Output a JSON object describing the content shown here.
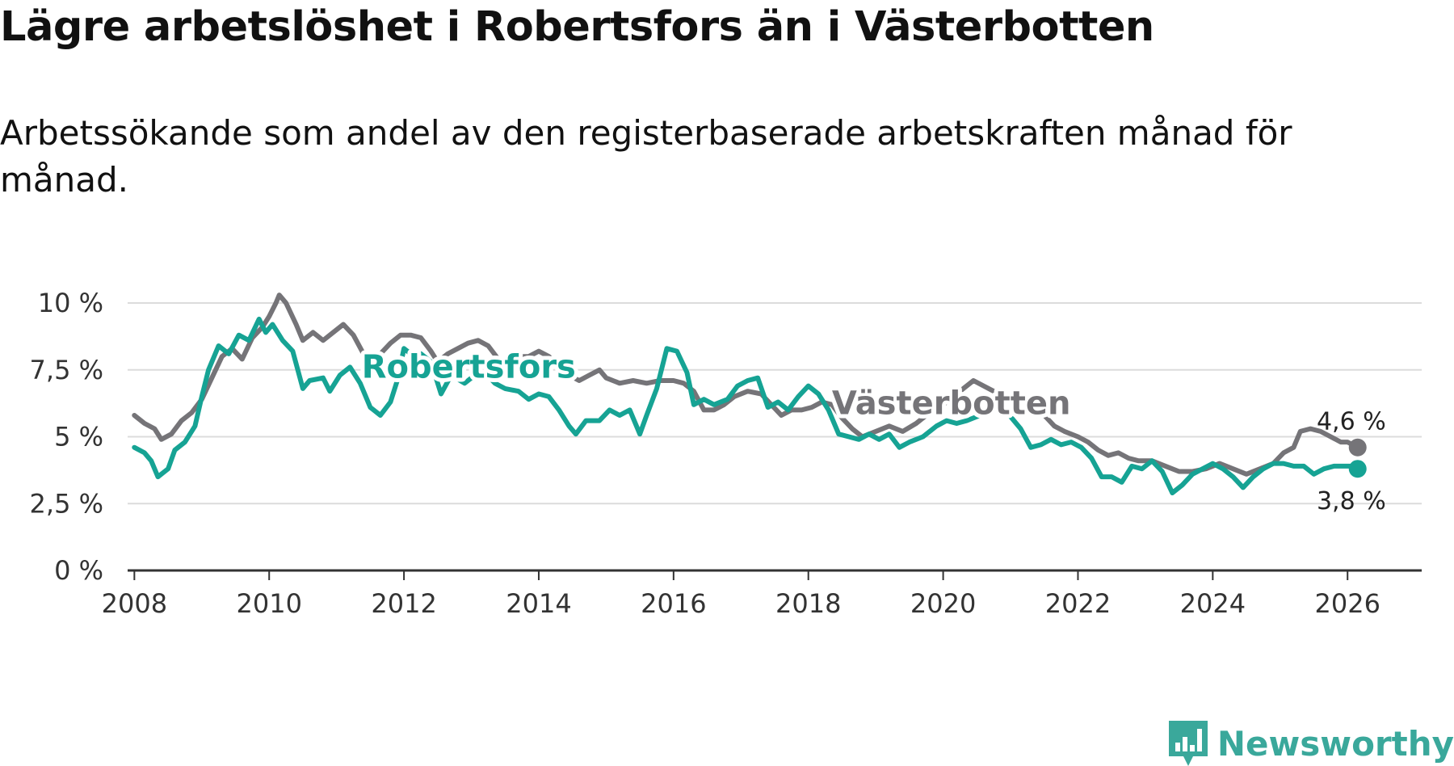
{
  "title": "Lägre arbetslöshet i Robertsfors än i Västerbotten",
  "subtitle": "Arbetssökande som andel av den registerbaserade arbetskraften månad för månad.",
  "brand": {
    "name": "Newsworthy",
    "color": "#3aa89b"
  },
  "colors": {
    "robertsfors": "#16a394",
    "vasterbotten": "#757478",
    "grid": "#dcdcdc",
    "axis": "#333333"
  },
  "chart_data": {
    "type": "line",
    "title": "Lägre arbetslöshet i Robertsfors än i Västerbotten",
    "subtitle": "Arbetssökande som andel av den registerbaserade arbetskraften månad för månad.",
    "xlabel": "",
    "ylabel": "",
    "xlim": [
      2007.9,
      2027.1
    ],
    "ylim": [
      0,
      10
    ],
    "x_ticks": [
      {
        "value": 2008,
        "label": "2008"
      },
      {
        "value": 2010,
        "label": "2010"
      },
      {
        "value": 2012,
        "label": "2012"
      },
      {
        "value": 2014,
        "label": "2014"
      },
      {
        "value": 2016,
        "label": "2016"
      },
      {
        "value": 2018,
        "label": "2018"
      },
      {
        "value": 2020,
        "label": "2020"
      },
      {
        "value": 2022,
        "label": "2022"
      },
      {
        "value": 2024,
        "label": "2024"
      },
      {
        "value": 2026,
        "label": "2026"
      }
    ],
    "y_ticks": [
      {
        "value": 0,
        "label": "0 %"
      },
      {
        "value": 2.5,
        "label": "2,5 %"
      },
      {
        "value": 5,
        "label": "5 %"
      },
      {
        "value": 7.5,
        "label": "7,5 %"
      },
      {
        "value": 10,
        "label": "10 %"
      }
    ],
    "grid": true,
    "series": [
      {
        "name": "Västerbotten",
        "label": "Västerbotten",
        "end_label": "4,6 %",
        "points": [
          [
            2008.0,
            5.8
          ],
          [
            2008.15,
            5.5
          ],
          [
            2008.3,
            5.3
          ],
          [
            2008.4,
            4.9
          ],
          [
            2008.55,
            5.1
          ],
          [
            2008.7,
            5.6
          ],
          [
            2008.85,
            5.9
          ],
          [
            2009.0,
            6.4
          ],
          [
            2009.15,
            7.2
          ],
          [
            2009.3,
            8.0
          ],
          [
            2009.45,
            8.3
          ],
          [
            2009.6,
            7.9
          ],
          [
            2009.75,
            8.7
          ],
          [
            2009.9,
            9.1
          ],
          [
            2010.0,
            9.5
          ],
          [
            2010.1,
            10.0
          ],
          [
            2010.15,
            10.3
          ],
          [
            2010.25,
            10.0
          ],
          [
            2010.4,
            9.2
          ],
          [
            2010.5,
            8.6
          ],
          [
            2010.65,
            8.9
          ],
          [
            2010.8,
            8.6
          ],
          [
            2010.95,
            8.9
          ],
          [
            2011.1,
            9.2
          ],
          [
            2011.25,
            8.8
          ],
          [
            2011.4,
            8.1
          ],
          [
            2011.5,
            7.8
          ],
          [
            2011.65,
            8.1
          ],
          [
            2011.8,
            8.5
          ],
          [
            2011.95,
            8.8
          ],
          [
            2012.1,
            8.8
          ],
          [
            2012.25,
            8.7
          ],
          [
            2012.4,
            8.2
          ],
          [
            2012.5,
            7.8
          ],
          [
            2012.65,
            8.1
          ],
          [
            2012.8,
            8.3
          ],
          [
            2012.95,
            8.5
          ],
          [
            2013.1,
            8.6
          ],
          [
            2013.25,
            8.4
          ],
          [
            2013.4,
            7.9
          ],
          [
            2013.55,
            7.5
          ],
          [
            2013.7,
            8.0
          ],
          [
            2013.85,
            8.0
          ],
          [
            2014.0,
            8.2
          ],
          [
            2014.15,
            8.0
          ],
          [
            2014.3,
            7.7
          ],
          [
            2014.45,
            7.3
          ],
          [
            2014.6,
            7.1
          ],
          [
            2014.75,
            7.3
          ],
          [
            2014.9,
            7.5
          ],
          [
            2015.0,
            7.2
          ],
          [
            2015.2,
            7.0
          ],
          [
            2015.4,
            7.1
          ],
          [
            2015.6,
            7.0
          ],
          [
            2015.8,
            7.1
          ],
          [
            2016.0,
            7.1
          ],
          [
            2016.15,
            7.0
          ],
          [
            2016.3,
            6.7
          ],
          [
            2016.45,
            6.0
          ],
          [
            2016.6,
            6.0
          ],
          [
            2016.75,
            6.2
          ],
          [
            2016.9,
            6.5
          ],
          [
            2017.1,
            6.7
          ],
          [
            2017.3,
            6.6
          ],
          [
            2017.45,
            6.2
          ],
          [
            2017.6,
            5.8
          ],
          [
            2017.75,
            6.0
          ],
          [
            2017.9,
            6.0
          ],
          [
            2018.05,
            6.1
          ],
          [
            2018.2,
            6.3
          ],
          [
            2018.35,
            6.2
          ],
          [
            2018.5,
            5.7
          ],
          [
            2018.65,
            5.3
          ],
          [
            2018.8,
            5.0
          ],
          [
            2019.0,
            5.2
          ],
          [
            2019.2,
            5.4
          ],
          [
            2019.4,
            5.2
          ],
          [
            2019.6,
            5.5
          ],
          [
            2019.8,
            5.9
          ],
          [
            2020.0,
            6.2
          ],
          [
            2020.15,
            6.5
          ],
          [
            2020.3,
            6.8
          ],
          [
            2020.45,
            7.1
          ],
          [
            2020.6,
            6.9
          ],
          [
            2020.75,
            6.7
          ],
          [
            2020.9,
            6.6
          ],
          [
            2021.1,
            6.5
          ],
          [
            2021.3,
            6.3
          ],
          [
            2021.5,
            5.8
          ],
          [
            2021.65,
            5.4
          ],
          [
            2021.8,
            5.2
          ],
          [
            2022.0,
            5.0
          ],
          [
            2022.15,
            4.8
          ],
          [
            2022.3,
            4.5
          ],
          [
            2022.45,
            4.3
          ],
          [
            2022.6,
            4.4
          ],
          [
            2022.75,
            4.2
          ],
          [
            2022.9,
            4.1
          ],
          [
            2023.1,
            4.1
          ],
          [
            2023.3,
            3.9
          ],
          [
            2023.5,
            3.7
          ],
          [
            2023.7,
            3.7
          ],
          [
            2023.9,
            3.8
          ],
          [
            2024.1,
            4.0
          ],
          [
            2024.3,
            3.8
          ],
          [
            2024.5,
            3.6
          ],
          [
            2024.7,
            3.8
          ],
          [
            2024.9,
            4.0
          ],
          [
            2025.05,
            4.4
          ],
          [
            2025.2,
            4.6
          ],
          [
            2025.3,
            5.2
          ],
          [
            2025.45,
            5.3
          ],
          [
            2025.6,
            5.2
          ],
          [
            2025.75,
            5.0
          ],
          [
            2025.9,
            4.8
          ],
          [
            2026.0,
            4.8
          ],
          [
            2026.15,
            4.6
          ]
        ]
      },
      {
        "name": "Robertsfors",
        "label": "Robertsfors",
        "end_label": "3,8 %",
        "points": [
          [
            2008.0,
            4.6
          ],
          [
            2008.15,
            4.4
          ],
          [
            2008.25,
            4.1
          ],
          [
            2008.35,
            3.5
          ],
          [
            2008.5,
            3.8
          ],
          [
            2008.6,
            4.5
          ],
          [
            2008.75,
            4.8
          ],
          [
            2008.9,
            5.4
          ],
          [
            2009.0,
            6.5
          ],
          [
            2009.1,
            7.5
          ],
          [
            2009.25,
            8.4
          ],
          [
            2009.4,
            8.1
          ],
          [
            2009.55,
            8.8
          ],
          [
            2009.7,
            8.6
          ],
          [
            2009.85,
            9.4
          ],
          [
            2009.95,
            8.9
          ],
          [
            2010.05,
            9.2
          ],
          [
            2010.2,
            8.6
          ],
          [
            2010.35,
            8.2
          ],
          [
            2010.5,
            6.8
          ],
          [
            2010.6,
            7.1
          ],
          [
            2010.8,
            7.2
          ],
          [
            2010.9,
            6.7
          ],
          [
            2011.05,
            7.3
          ],
          [
            2011.2,
            7.6
          ],
          [
            2011.35,
            7.0
          ],
          [
            2011.5,
            6.1
          ],
          [
            2011.65,
            5.8
          ],
          [
            2011.8,
            6.3
          ],
          [
            2011.9,
            7.1
          ],
          [
            2012.0,
            8.3
          ],
          [
            2012.1,
            8.1
          ],
          [
            2012.25,
            8.1
          ],
          [
            2012.4,
            7.8
          ],
          [
            2012.55,
            6.6
          ],
          [
            2012.7,
            7.3
          ],
          [
            2012.9,
            7.0
          ],
          [
            2013.05,
            7.3
          ],
          [
            2013.2,
            7.4
          ],
          [
            2013.35,
            7.0
          ],
          [
            2013.5,
            6.8
          ],
          [
            2013.7,
            6.7
          ],
          [
            2013.85,
            6.4
          ],
          [
            2014.0,
            6.6
          ],
          [
            2014.15,
            6.5
          ],
          [
            2014.3,
            6.0
          ],
          [
            2014.45,
            5.4
          ],
          [
            2014.55,
            5.1
          ],
          [
            2014.7,
            5.6
          ],
          [
            2014.9,
            5.6
          ],
          [
            2015.05,
            6.0
          ],
          [
            2015.2,
            5.8
          ],
          [
            2015.35,
            6.0
          ],
          [
            2015.5,
            5.1
          ],
          [
            2015.6,
            5.8
          ],
          [
            2015.75,
            6.8
          ],
          [
            2015.9,
            8.3
          ],
          [
            2016.05,
            8.2
          ],
          [
            2016.2,
            7.4
          ],
          [
            2016.3,
            6.2
          ],
          [
            2016.45,
            6.4
          ],
          [
            2016.6,
            6.2
          ],
          [
            2016.8,
            6.4
          ],
          [
            2016.95,
            6.9
          ],
          [
            2017.1,
            7.1
          ],
          [
            2017.25,
            7.2
          ],
          [
            2017.4,
            6.1
          ],
          [
            2017.55,
            6.3
          ],
          [
            2017.7,
            6.0
          ],
          [
            2017.85,
            6.5
          ],
          [
            2018.0,
            6.9
          ],
          [
            2018.15,
            6.6
          ],
          [
            2018.3,
            6.0
          ],
          [
            2018.45,
            5.1
          ],
          [
            2018.6,
            5.0
          ],
          [
            2018.75,
            4.9
          ],
          [
            2018.9,
            5.1
          ],
          [
            2019.05,
            4.9
          ],
          [
            2019.2,
            5.1
          ],
          [
            2019.35,
            4.6
          ],
          [
            2019.5,
            4.8
          ],
          [
            2019.7,
            5.0
          ],
          [
            2019.9,
            5.4
          ],
          [
            2020.05,
            5.6
          ],
          [
            2020.2,
            5.5
          ],
          [
            2020.35,
            5.6
          ],
          [
            2020.55,
            5.8
          ],
          [
            2020.75,
            6.0
          ],
          [
            2020.95,
            5.9
          ],
          [
            2021.15,
            5.3
          ],
          [
            2021.3,
            4.6
          ],
          [
            2021.45,
            4.7
          ],
          [
            2021.6,
            4.9
          ],
          [
            2021.75,
            4.7
          ],
          [
            2021.9,
            4.8
          ],
          [
            2022.05,
            4.6
          ],
          [
            2022.2,
            4.2
          ],
          [
            2022.35,
            3.5
          ],
          [
            2022.5,
            3.5
          ],
          [
            2022.65,
            3.3
          ],
          [
            2022.8,
            3.9
          ],
          [
            2022.95,
            3.8
          ],
          [
            2023.1,
            4.1
          ],
          [
            2023.25,
            3.7
          ],
          [
            2023.4,
            2.9
          ],
          [
            2023.55,
            3.2
          ],
          [
            2023.7,
            3.6
          ],
          [
            2023.85,
            3.8
          ],
          [
            2024.0,
            4.0
          ],
          [
            2024.15,
            3.8
          ],
          [
            2024.3,
            3.5
          ],
          [
            2024.45,
            3.1
          ],
          [
            2024.6,
            3.5
          ],
          [
            2024.75,
            3.8
          ],
          [
            2024.9,
            4.0
          ],
          [
            2025.05,
            4.0
          ],
          [
            2025.2,
            3.9
          ],
          [
            2025.35,
            3.9
          ],
          [
            2025.5,
            3.6
          ],
          [
            2025.65,
            3.8
          ],
          [
            2025.8,
            3.9
          ],
          [
            2025.95,
            3.9
          ],
          [
            2026.05,
            3.9
          ],
          [
            2026.15,
            3.8
          ]
        ]
      }
    ],
    "annotations": [
      {
        "text": "Robertsfors",
        "series": "Robertsfors"
      },
      {
        "text": "Västerbotten",
        "series": "Västerbotten"
      }
    ]
  }
}
